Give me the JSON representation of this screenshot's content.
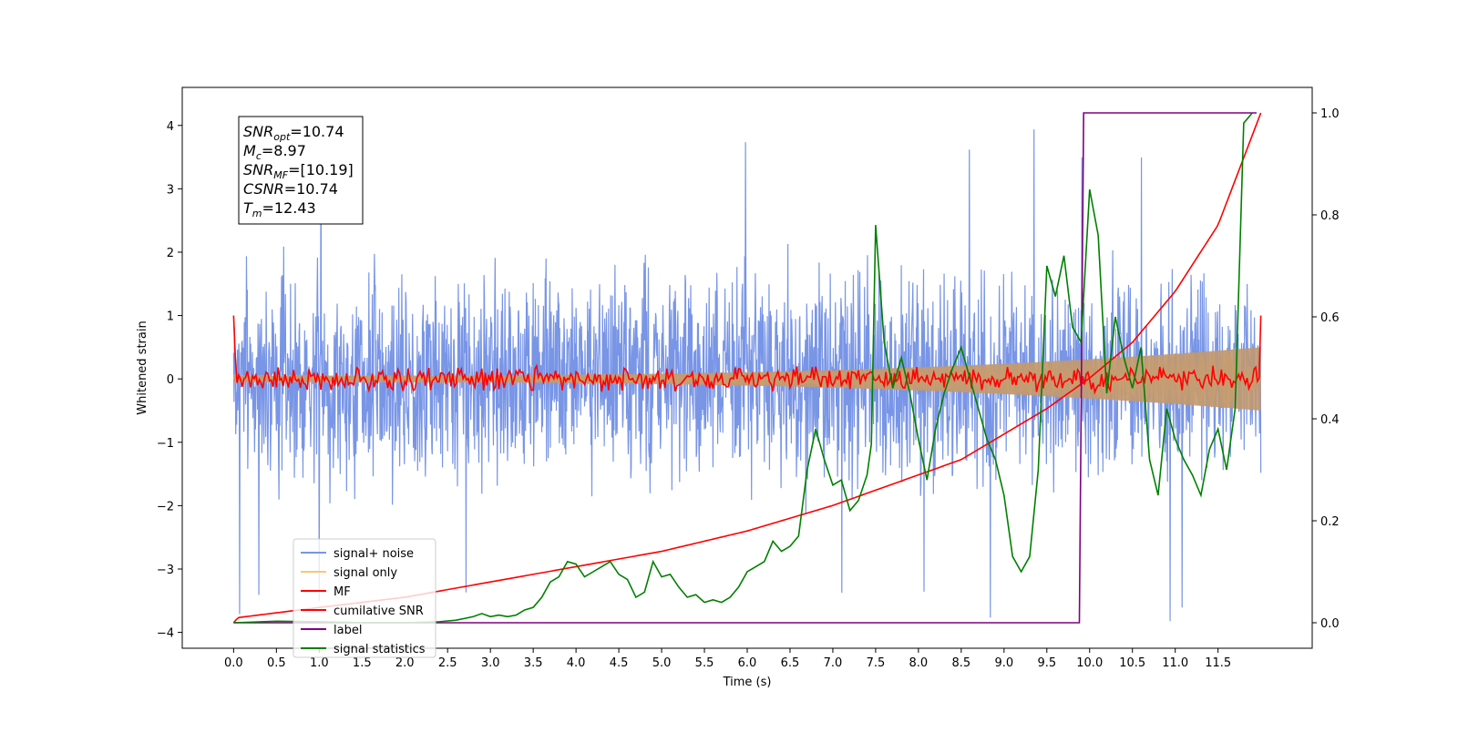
{
  "chart_data": {
    "type": "line",
    "xlabel": "Time (s)",
    "ylabel": "Whitened strain",
    "ylabel_right": "",
    "xlim": [
      -0.6,
      12.6
    ],
    "ylim": [
      -4.25,
      4.6
    ],
    "ylim_right": [
      -0.05,
      1.05
    ],
    "x_ticks": [
      "0.0",
      "0.5",
      "1.0",
      "1.5",
      "2.0",
      "2.5",
      "3.0",
      "3.5",
      "4.0",
      "4.5",
      "5.0",
      "5.5",
      "6.0",
      "6.5",
      "7.0",
      "7.5",
      "8.0",
      "8.5",
      "9.0",
      "9.5",
      "10.0",
      "10.5",
      "11.0",
      "11.5"
    ],
    "y_ticks": [
      "4",
      "3",
      "2",
      "1",
      "0",
      "−1",
      "−2",
      "−3",
      "−4"
    ],
    "y_ticks_right": [
      "1.0",
      "0.8",
      "0.6",
      "0.4",
      "0.2",
      "0.0"
    ],
    "grid": false,
    "legend_position": "lower-left",
    "annotation": {
      "lines": [
        {
          "main": "SNR",
          "sub": "opt",
          "value": "=10.74"
        },
        {
          "main": "M",
          "sub": "c",
          "value": "=8.97"
        },
        {
          "main": "SNR",
          "sub": "MF",
          "value": "=[10.19]"
        },
        {
          "main": "CSNR",
          "sub": "",
          "value": "=10.74"
        },
        {
          "main": "T",
          "sub": "m",
          "value": "=12.43"
        }
      ]
    },
    "series": [
      {
        "name": "signal+ noise",
        "axis": "left",
        "color": "#7895e6",
        "description_kind": "noise",
        "x_range": [
          0.0,
          12.0
        ],
        "envelope": [
          -2.2,
          2.2
        ],
        "peaks": [
          4.05,
          -3.85
        ]
      },
      {
        "name": "signal only",
        "axis": "left",
        "color": "#f7c970",
        "description_kind": "chirp",
        "x_range": [
          0.0,
          12.0
        ],
        "amplitude_start": 0.05,
        "amplitude_end": 0.5
      },
      {
        "name": "MF",
        "axis": "left",
        "color": "#ff0000",
        "description_kind": "noise",
        "x_range": [
          0.0,
          12.0
        ],
        "start_value": 1.0,
        "end_value": 1.0,
        "envelope": [
          -0.15,
          0.15
        ]
      },
      {
        "name": "cumilative SNR",
        "axis": "right",
        "color": "#ff0000",
        "x": [
          0.0,
          0.05,
          1.0,
          2.0,
          3.0,
          4.0,
          5.0,
          6.0,
          7.0,
          7.5,
          8.0,
          8.5,
          9.0,
          9.5,
          10.0,
          10.5,
          11.0,
          11.5,
          12.0
        ],
        "values": [
          0.0,
          0.01,
          0.03,
          0.05,
          0.08,
          0.11,
          0.14,
          0.18,
          0.23,
          0.26,
          0.29,
          0.32,
          0.37,
          0.42,
          0.48,
          0.55,
          0.65,
          0.78,
          1.0
        ]
      },
      {
        "name": "label",
        "axis": "right",
        "color": "#800080",
        "x": [
          0.0,
          9.88,
          9.93,
          11.95
        ],
        "values": [
          0.0,
          0.0,
          1.0,
          1.0
        ]
      },
      {
        "name": "signal statistics",
        "axis": "right",
        "color": "#008000",
        "x": [
          0.0,
          0.5,
          1.0,
          1.5,
          2.0,
          2.4,
          2.6,
          2.8,
          2.9,
          3.0,
          3.1,
          3.2,
          3.3,
          3.4,
          3.5,
          3.6,
          3.7,
          3.8,
          3.9,
          4.0,
          4.1,
          4.2,
          4.3,
          4.4,
          4.5,
          4.6,
          4.7,
          4.8,
          4.9,
          5.0,
          5.1,
          5.2,
          5.3,
          5.4,
          5.5,
          5.6,
          5.7,
          5.8,
          5.9,
          6.0,
          6.1,
          6.2,
          6.3,
          6.4,
          6.5,
          6.6,
          6.7,
          6.8,
          6.9,
          7.0,
          7.1,
          7.2,
          7.3,
          7.4,
          7.45,
          7.5,
          7.6,
          7.7,
          7.8,
          7.9,
          8.0,
          8.1,
          8.2,
          8.3,
          8.4,
          8.5,
          8.6,
          8.7,
          8.8,
          8.9,
          9.0,
          9.1,
          9.2,
          9.3,
          9.4,
          9.5,
          9.6,
          9.7,
          9.8,
          9.9,
          10.0,
          10.1,
          10.2,
          10.3,
          10.4,
          10.5,
          10.6,
          10.7,
          10.8,
          10.9,
          11.0,
          11.1,
          11.2,
          11.3,
          11.4,
          11.5,
          11.6,
          11.7,
          11.8,
          11.9
        ],
        "values": [
          0.0,
          0.003,
          0.002,
          0.0,
          0.0,
          0.002,
          0.005,
          0.012,
          0.018,
          0.012,
          0.015,
          0.012,
          0.015,
          0.025,
          0.03,
          0.05,
          0.08,
          0.09,
          0.12,
          0.115,
          0.09,
          0.1,
          0.11,
          0.12,
          0.095,
          0.085,
          0.05,
          0.06,
          0.12,
          0.09,
          0.095,
          0.07,
          0.05,
          0.055,
          0.04,
          0.045,
          0.04,
          0.05,
          0.07,
          0.1,
          0.11,
          0.12,
          0.16,
          0.14,
          0.15,
          0.17,
          0.3,
          0.38,
          0.32,
          0.27,
          0.28,
          0.22,
          0.24,
          0.29,
          0.35,
          0.78,
          0.55,
          0.46,
          0.52,
          0.45,
          0.36,
          0.28,
          0.38,
          0.45,
          0.5,
          0.54,
          0.48,
          0.42,
          0.36,
          0.32,
          0.25,
          0.13,
          0.1,
          0.13,
          0.3,
          0.7,
          0.64,
          0.72,
          0.58,
          0.55,
          0.85,
          0.76,
          0.45,
          0.6,
          0.52,
          0.46,
          0.54,
          0.32,
          0.25,
          0.42,
          0.36,
          0.32,
          0.29,
          0.25,
          0.34,
          0.38,
          0.3,
          0.42,
          0.98,
          1.0
        ]
      }
    ]
  }
}
